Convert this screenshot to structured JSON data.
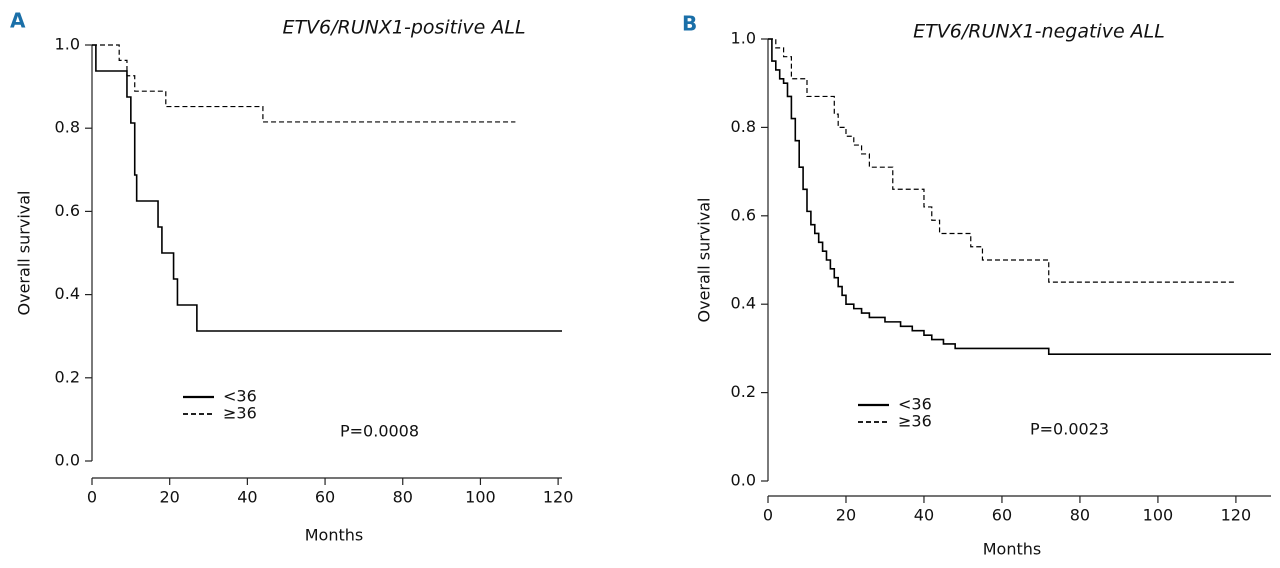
{
  "chart_data": [
    {
      "type": "step",
      "panel": "A",
      "title": "ETV6/RUNX1-positive ALL",
      "x_label": "Months",
      "y_label": "Overall survival",
      "annotation": "P=0.0008",
      "xlim": [
        0,
        121
      ],
      "xticks": [
        0,
        20,
        40,
        60,
        80,
        100,
        120
      ],
      "ylim": [
        0,
        1
      ],
      "yticks": [
        {
          "value": 0,
          "label": "0.0"
        },
        0.2,
        0.4,
        0.6,
        0.8,
        {
          "value": 1,
          "label": "1.0"
        }
      ],
      "series": [
        {
          "name": "<36",
          "color": "#000000",
          "line_style": "solid",
          "x": [
            0,
            1,
            9,
            10,
            11,
            11.5,
            17,
            18,
            21,
            22,
            27,
            121
          ],
          "values": [
            1,
            0.9375,
            0.875,
            0.8125,
            0.6875,
            0.625,
            0.5625,
            0.5,
            0.4375,
            0.375,
            0.3125,
            0.3125
          ]
        },
        {
          "name": "≥36",
          "color": "#000000",
          "line_style": "dashed",
          "x": [
            0,
            7,
            9,
            11,
            19,
            44,
            109
          ],
          "values": [
            1,
            0.963,
            0.926,
            0.889,
            0.852,
            0.815,
            0.815
          ]
        }
      ]
    },
    {
      "type": "step",
      "panel": "B",
      "title": "ETV6/RUNX1-negative ALL",
      "x_label": "Months",
      "y_label": "Overall survival",
      "annotation": "P=0.0023",
      "xlim": [
        0,
        129
      ],
      "xticks": [
        0,
        20,
        40,
        60,
        80,
        100,
        120
      ],
      "ylim": [
        0,
        1
      ],
      "yticks": [
        {
          "value": 0,
          "label": "0.0"
        },
        0.2,
        0.4,
        0.6,
        0.8,
        {
          "value": 1,
          "label": "1.0"
        }
      ],
      "series": [
        {
          "name": "<36",
          "color": "#000000",
          "line_style": "solid",
          "x": [
            0,
            1,
            2,
            3,
            4,
            5,
            6,
            7,
            8,
            9,
            10,
            11,
            12,
            13,
            14,
            15,
            16,
            17,
            18,
            19,
            20,
            22,
            24,
            26,
            30,
            34,
            37,
            40,
            42,
            45,
            48,
            72,
            129
          ],
          "values": [
            1,
            0.95,
            0.93,
            0.91,
            0.9,
            0.87,
            0.82,
            0.77,
            0.71,
            0.66,
            0.61,
            0.58,
            0.56,
            0.54,
            0.52,
            0.5,
            0.48,
            0.46,
            0.44,
            0.42,
            0.4,
            0.39,
            0.38,
            0.37,
            0.36,
            0.35,
            0.34,
            0.33,
            0.32,
            0.31,
            0.3,
            0.287,
            0.287
          ]
        },
        {
          "name": "≥36",
          "color": "#000000",
          "line_style": "dashed",
          "x": [
            0,
            2,
            4,
            6,
            10,
            17,
            18,
            20,
            22,
            24,
            26,
            32,
            40,
            42,
            44,
            52,
            55,
            72,
            120
          ],
          "values": [
            1,
            0.98,
            0.96,
            0.91,
            0.87,
            0.83,
            0.8,
            0.78,
            0.76,
            0.74,
            0.71,
            0.66,
            0.62,
            0.59,
            0.56,
            0.53,
            0.5,
            0.45,
            0.45
          ]
        }
      ]
    }
  ]
}
